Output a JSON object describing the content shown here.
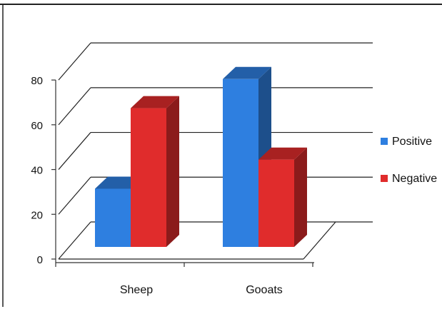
{
  "chart_data": {
    "type": "bar",
    "categories": [
      "Sheep",
      "Gooats"
    ],
    "series": [
      {
        "name": "Positive",
        "values": [
          26,
          75
        ],
        "color": "#2e7fe0"
      },
      {
        "name": "Negative",
        "values": [
          62,
          39
        ],
        "color": "#e02c2c"
      }
    ],
    "ylim": [
      0,
      80
    ],
    "yticks": [
      "0",
      "20",
      "40",
      "60",
      "80"
    ],
    "grid": true,
    "legend_position": "right",
    "three_d": true
  }
}
